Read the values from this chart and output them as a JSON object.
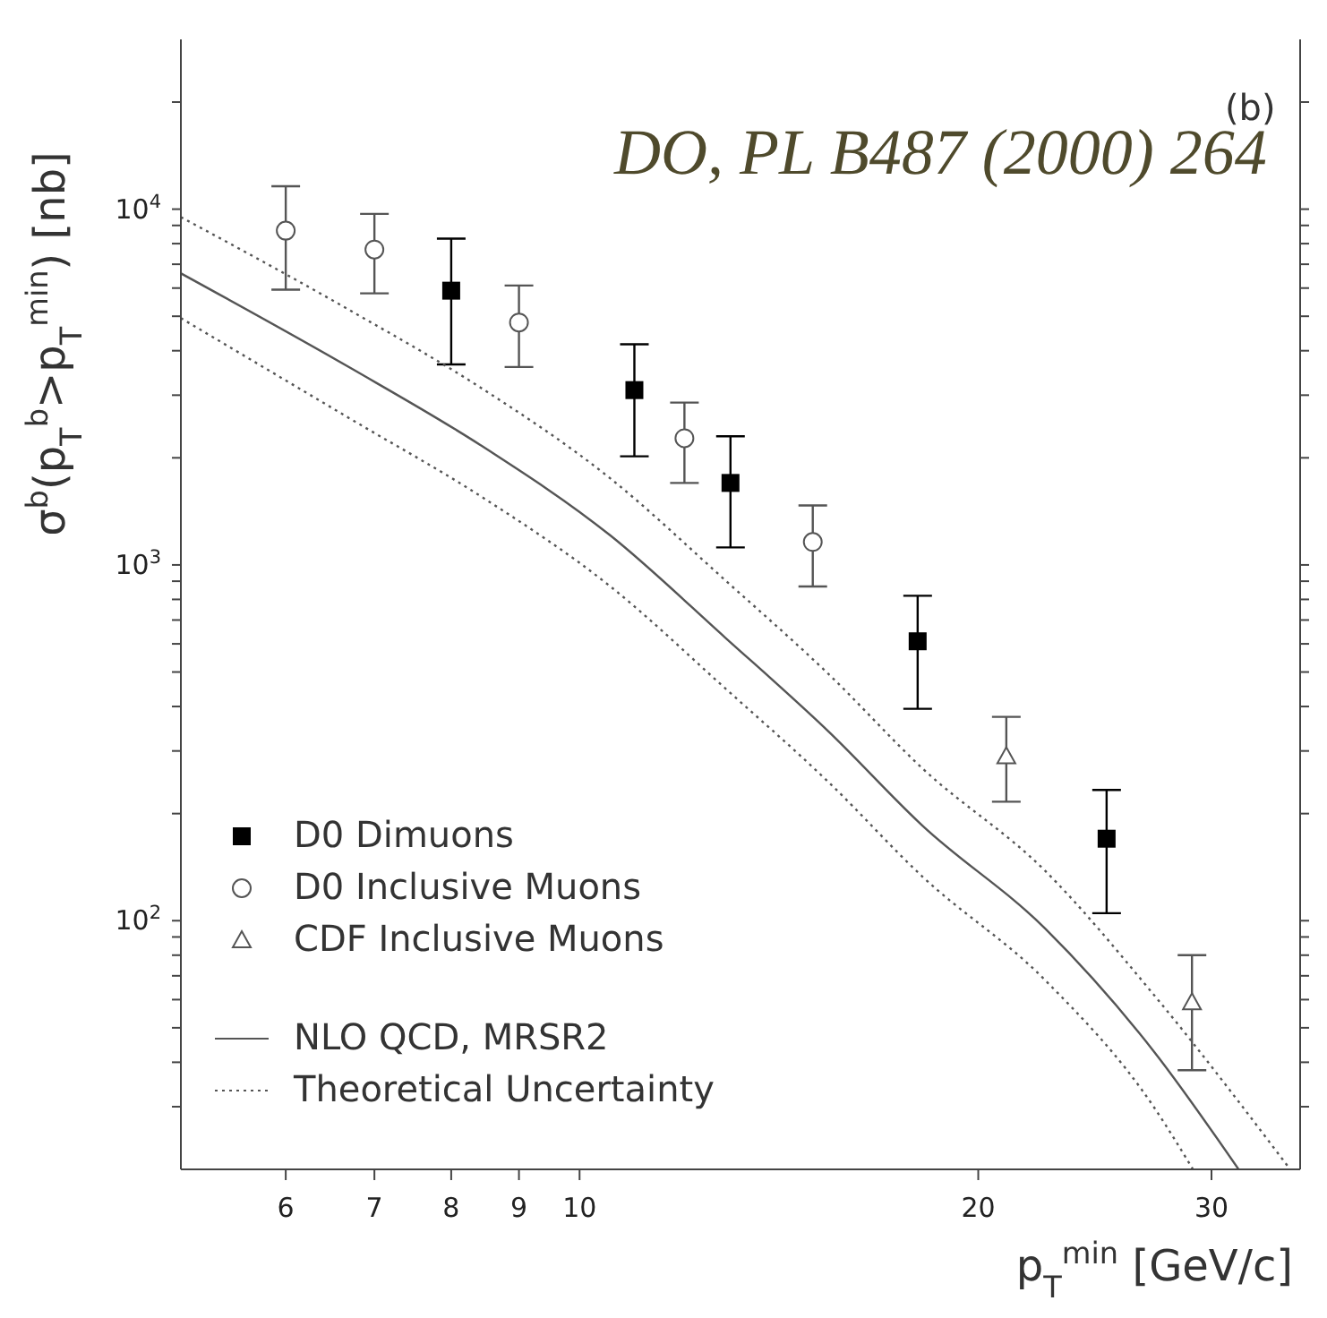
{
  "chart_data": {
    "type": "scatter",
    "xlabel": "p$_{T}$$^{min}$ [GeV/c]",
    "ylabel": "σ$^{b}$(p$_{T}$$^{b}$>p$_{T}$$^{min}$) [nb]",
    "annotations": [
      "DO, PL B487 (2000) 264",
      "(b)"
    ],
    "log": "xy",
    "legend": "bottom left",
    "xlim": [
      5,
      35
    ],
    "xticks": [
      6,
      7,
      8,
      9,
      10,
      20,
      30
    ],
    "ylim": [
      20,
      30000
    ],
    "yticks": [
      {
        "value": 30,
        "label": null
      },
      {
        "value": 40,
        "label": null
      },
      {
        "value": 50,
        "label": null
      },
      {
        "value": 60,
        "label": null
      },
      {
        "value": 70,
        "label": null
      },
      {
        "value": 80,
        "label": null
      },
      {
        "value": 90,
        "label": null
      },
      {
        "value": 100,
        "label": "10$^{2}$"
      },
      {
        "value": 200,
        "label": null
      },
      {
        "value": 300,
        "label": null
      },
      {
        "value": 400,
        "label": null
      },
      {
        "value": 500,
        "label": null
      },
      {
        "value": 600,
        "label": null
      },
      {
        "value": 700,
        "label": null
      },
      {
        "value": 800,
        "label": null
      },
      {
        "value": 900,
        "label": null
      },
      {
        "value": 1000,
        "label": "10$^{3}$"
      },
      {
        "value": 2000,
        "label": null
      },
      {
        "value": 3000,
        "label": null
      },
      {
        "value": 4000,
        "label": null
      },
      {
        "value": 5000,
        "label": null
      },
      {
        "value": 6000,
        "label": null
      },
      {
        "value": 7000,
        "label": null
      },
      {
        "value": 8000,
        "label": null
      },
      {
        "value": 9000,
        "label": null
      },
      {
        "value": 10000,
        "label": "10$^{4}$"
      },
      {
        "value": 20000,
        "label": null
      }
    ],
    "series": [
      {
        "name": "D0 Dimuons",
        "marker": "square",
        "color": "#000000",
        "x": [
          8,
          11,
          13,
          18,
          25
        ],
        "values": [
          5900,
          3100,
          1700,
          610,
          170
        ],
        "errors": [
          [
            3660,
            8260
          ],
          [
            2020,
            4170
          ],
          [
            1120,
            2300
          ],
          [
            394,
            819
          ],
          [
            105,
            233
          ]
        ]
      },
      {
        "name": "D0 Inclusive Muons",
        "marker": "circle",
        "color": "#555555",
        "x": [
          6,
          7,
          9,
          12,
          15
        ],
        "values": [
          8700,
          7700,
          4800,
          2270,
          1160
        ],
        "errors": [
          [
            5940,
            11600
          ],
          [
            5800,
            9700
          ],
          [
            3600,
            6100
          ],
          [
            1700,
            2860
          ],
          [
            870,
            1470
          ]
        ]
      },
      {
        "name": "CDF Inclusive Muons",
        "marker": "triangle",
        "color": "#555555",
        "x": [
          21,
          29
        ],
        "values": [
          290,
          59
        ],
        "errors": [
          [
            216,
            374
          ],
          [
            38,
            80
          ]
        ]
      },
      {
        "name": "NLO QCD, MRSR2",
        "type": "line",
        "line_style": "solid",
        "color": "#555555",
        "x": [
          5,
          6.73,
          8.42,
          10.55,
          12.88,
          15.42,
          18.15,
          22.47,
          27.13,
          31.45
        ],
        "values": [
          6600,
          3560,
          2170,
          1210,
          625,
          340,
          185,
          95,
          43,
          20
        ]
      },
      {
        "name": "Theoretical Uncertainty",
        "type": "line",
        "line_style": "dotted",
        "color": "#555555",
        "x": [
          5,
          6.73,
          8.42,
          10.55,
          12.88,
          15.42,
          18.15,
          22.47,
          27.13,
          34.4
        ],
        "values": [
          9500,
          5160,
          3150,
          1750,
          906,
          493,
          268,
          138,
          62,
          20
        ]
      },
      {
        "type": "line",
        "line_style": "dotted",
        "color": "#555555",
        "x": [
          5,
          6.73,
          8.42,
          10.55,
          12.88,
          15.42,
          18.15,
          22.47,
          27.13,
          29.05
        ],
        "values": [
          4940,
          2560,
          1560,
          870,
          450,
          245,
          133,
          68,
          30,
          20
        ]
      }
    ]
  }
}
